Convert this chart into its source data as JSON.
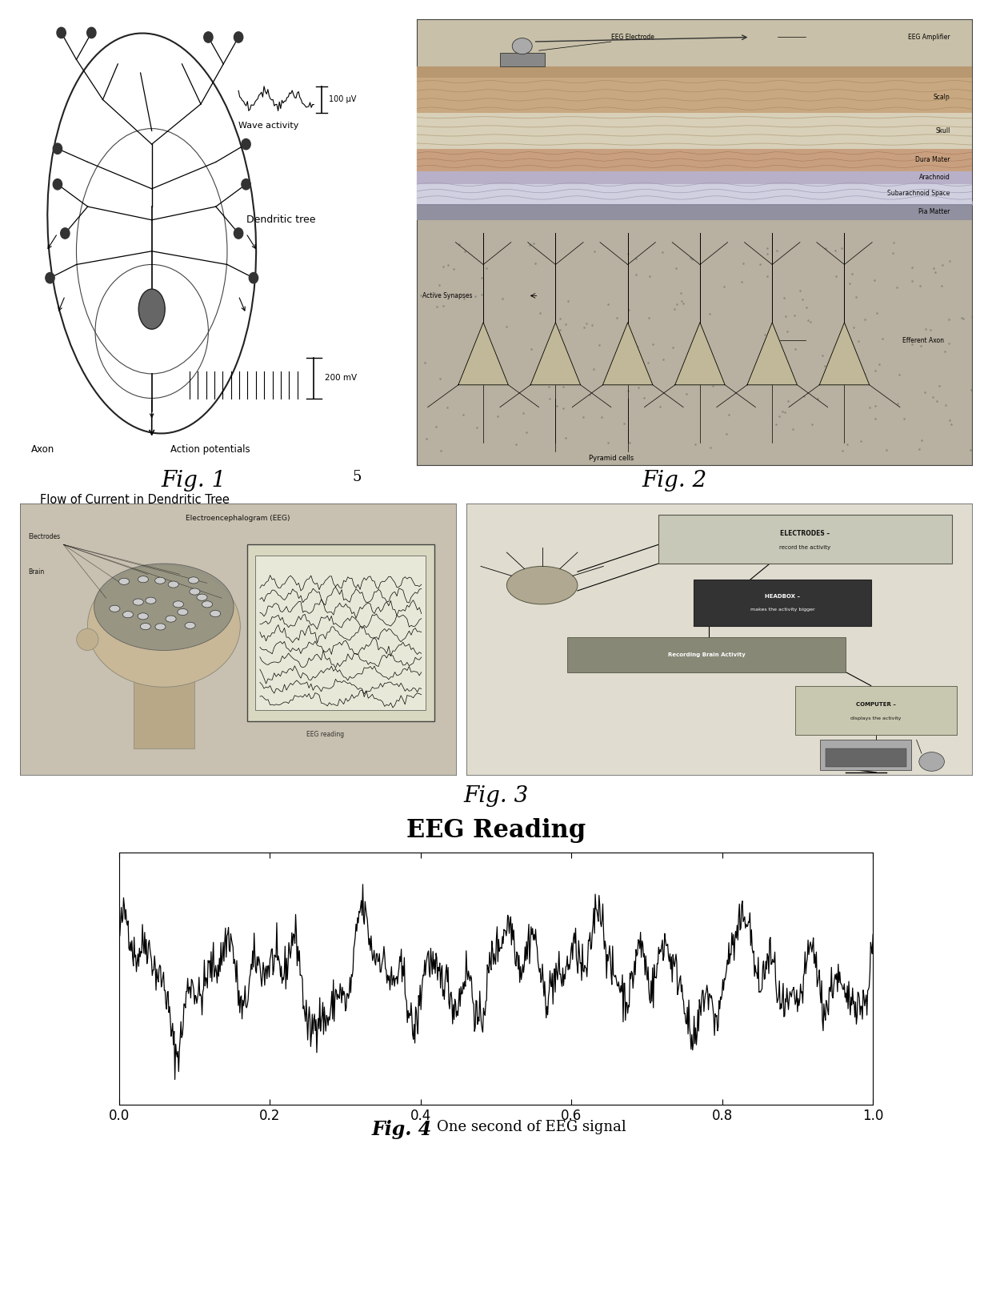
{
  "fig_width": 12.4,
  "fig_height": 16.14,
  "background_color": "#ffffff",
  "fig1_label": "Fig. 1",
  "fig2_label": "Fig. 2",
  "fig3_line1": "Fig. 3",
  "fig3_line2": "EEG Reading",
  "fig4_bold": "Fig. 4",
  "fig4_normal": "One second of EEG signal",
  "flow_text": "Flow of Current in Dendritic Tree",
  "number_5": "5",
  "eeg_xticks": [
    0.0,
    0.2,
    0.4,
    0.6,
    0.8,
    1.0
  ],
  "eeg_seed": 42,
  "panel1_bg": "#ffffff",
  "panel2_bg": "#d8d0c0",
  "panel3a_bg": "#c8c0b0",
  "panel3b_bg": "#e0ddd0",
  "eeg_panel_bg": "#ffffff"
}
